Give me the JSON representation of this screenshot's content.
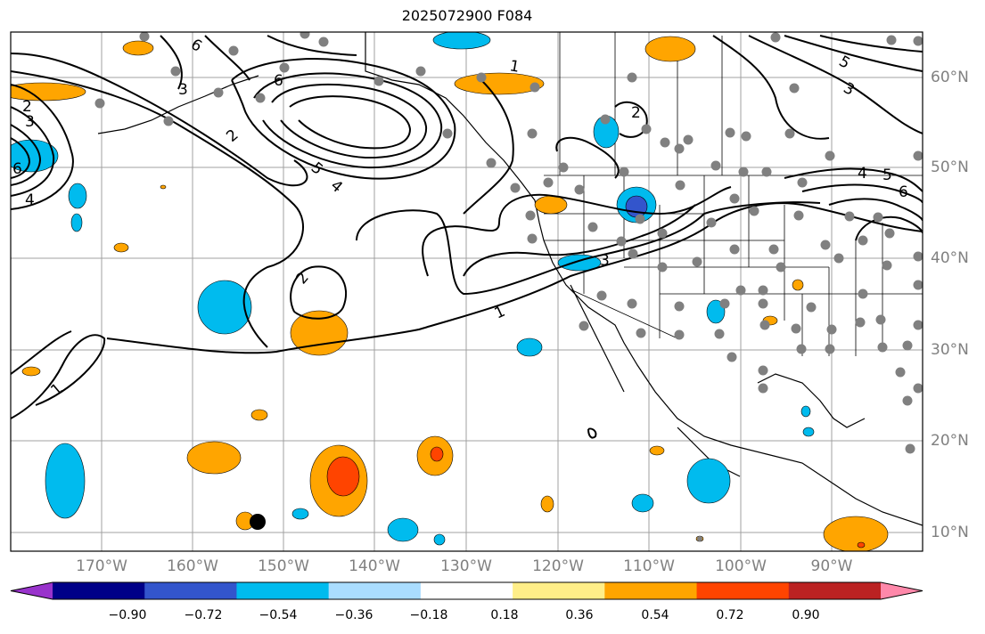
{
  "title": "2025072900 F084",
  "lon_labels": [
    "170°W",
    "160°W",
    "150°W",
    "140°W",
    "130°W",
    "120°W",
    "110°W",
    "100°W",
    "90°W"
  ],
  "lat_labels": [
    "60°N",
    "50°N",
    "40°N",
    "30°N",
    "20°N",
    "10°N"
  ],
  "contour_labels": [
    "1",
    "1",
    "1",
    "2",
    "2",
    "2",
    "2",
    "3",
    "3",
    "3",
    "3",
    "4",
    "4",
    "4",
    "5",
    "5",
    "5",
    "6",
    "6",
    "6",
    "6"
  ],
  "colorbar": {
    "colors": [
      "#9933cc",
      "#000088",
      "#3355cc",
      "#00bbee",
      "#aaddff",
      "#ffffff",
      "#ffee88",
      "#ffa500",
      "#ff4400",
      "#bb2222",
      "#ff88aa"
    ],
    "tick_labels": [
      "−0.90",
      "−0.72",
      "−0.54",
      "−0.36",
      "−0.18",
      "0.18",
      "0.36",
      "0.54",
      "0.72",
      "0.90"
    ]
  }
}
